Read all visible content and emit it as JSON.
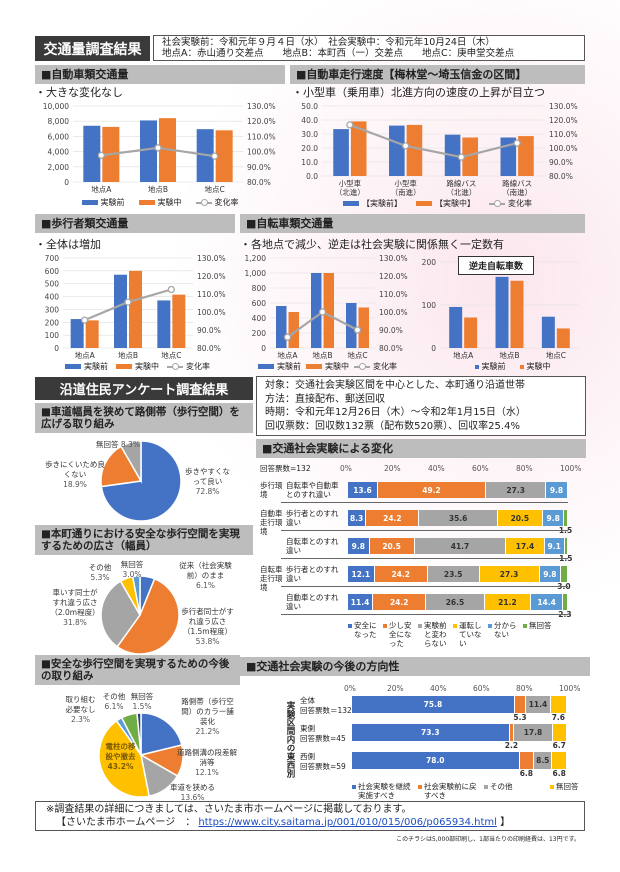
{
  "colors": {
    "before": "#4472c4",
    "during": "#ed7d31",
    "rate": "#a6a6a6",
    "gray": "#a5a5a5",
    "yellow": "#ffc000",
    "lightblue": "#5b9bd5",
    "green": "#70ad47"
  },
  "traffic": {
    "title": "交通量調査結果",
    "info_line1": "社会実験前：令和元年９月４日（水）　社会実験中：令和元年10月24日（木）",
    "info_line2": "地点A：赤山通り交差点　　地点B：本町西（一）交差点　　地点C：庚申堂交差点",
    "legend": {
      "before": "実験前",
      "during": "実験中",
      "rate": "変化率",
      "before_b": "【実験前】",
      "during_b": "【実験中】"
    }
  },
  "sections": {
    "car_volume": {
      "header": "■自動車類交通量",
      "note": "・大きな変化なし"
    },
    "car_speed": {
      "header": "■自動車走行速度【梅林堂～埼玉信金の区間】",
      "note": "・小型車（乗用車）北進方向の速度の上昇が目立つ"
    },
    "ped_volume": {
      "header": "■歩行者類交通量",
      "note": "・全体は増加"
    },
    "bike_volume": {
      "header": "■自転車類交通量",
      "note": "・各地点で減少、逆走は社会実験に関係無く一定数有",
      "inset_title": "逆走自転車数"
    }
  },
  "chart_data": [
    {
      "type": "bar",
      "id": "car",
      "categories": [
        "地点A",
        "地点B",
        "地点C"
      ],
      "series": [
        {
          "name": "実験前",
          "values": [
            7400,
            8100,
            6950
          ]
        },
        {
          "name": "実験中",
          "values": [
            7250,
            8400,
            6800
          ]
        },
        {
          "name": "変化率",
          "type": "line",
          "axis": "right",
          "values": [
            97.5,
            102.5,
            97.0
          ]
        }
      ],
      "ylim": [
        0,
        10000
      ],
      "yticks": [
        "0",
        "2,000",
        "4,000",
        "6,000",
        "8,000",
        "10,000"
      ],
      "y2lim": [
        80,
        130
      ],
      "y2ticks": [
        "80.0%",
        "90.0%",
        "100.0%",
        "110.0%",
        "120.0%",
        "130.0%"
      ]
    },
    {
      "type": "bar",
      "id": "speed",
      "categories": [
        "小型車\n（北進）",
        "小型車\n（南進）",
        "路線バス\n（北進）",
        "路線バス\n（南進）"
      ],
      "series": [
        {
          "name": "【実験前】",
          "values": [
            33.5,
            36,
            29.5,
            27.5
          ]
        },
        {
          "name": "【実験中】",
          "values": [
            39,
            36.5,
            27.5,
            28.5
          ]
        },
        {
          "name": "変化率",
          "type": "line",
          "axis": "right",
          "values": [
            116.5,
            101.5,
            93.5,
            103.5
          ]
        }
      ],
      "ylim": [
        0,
        50
      ],
      "yticks": [
        "0.0",
        "10.0",
        "20.0",
        "30.0",
        "40.0",
        "50.0"
      ],
      "y2lim": [
        80,
        130
      ],
      "y2ticks": [
        "80.0%",
        "90.0%",
        "100.0%",
        "110.0%",
        "120.0%",
        "130.0%"
      ]
    },
    {
      "type": "bar",
      "id": "ped",
      "categories": [
        "地点A",
        "地点B",
        "地点C"
      ],
      "series": [
        {
          "name": "実験前",
          "values": [
            225,
            570,
            370
          ]
        },
        {
          "name": "実験中",
          "values": [
            215,
            600,
            415
          ]
        },
        {
          "name": "変化率",
          "type": "line",
          "axis": "right",
          "values": [
            95.5,
            105.5,
            112.5
          ]
        }
      ],
      "ylim": [
        0,
        700
      ],
      "yticks": [
        "0",
        "100",
        "200",
        "300",
        "400",
        "500",
        "600",
        "700"
      ],
      "y2lim": [
        80,
        130
      ],
      "y2ticks": [
        "80.0%",
        "90.0%",
        "100.0%",
        "110.0%",
        "120.0%",
        "130.0%"
      ]
    },
    {
      "type": "bar",
      "id": "bike",
      "categories": [
        "地点A",
        "地点B",
        "地点C"
      ],
      "series": [
        {
          "name": "実験前",
          "values": [
            560,
            1000,
            600
          ]
        },
        {
          "name": "実験中",
          "values": [
            480,
            1000,
            540
          ]
        },
        {
          "name": "変化率",
          "type": "line",
          "axis": "right",
          "values": [
            86,
            100,
            90
          ]
        }
      ],
      "ylim": [
        0,
        1200
      ],
      "yticks": [
        "0",
        "200",
        "400",
        "600",
        "800",
        "1,000",
        "1,200"
      ],
      "y2lim": [
        80,
        130
      ],
      "y2ticks": [
        "80.0%",
        "90.0%",
        "100.0%",
        "110.0%",
        "120.0%",
        "130.0%"
      ]
    },
    {
      "type": "bar",
      "id": "reverse",
      "title": "逆走自転車数",
      "categories": [
        "地点A",
        "地点B",
        "地点C"
      ],
      "series": [
        {
          "name": "実験前",
          "values": [
            105,
            182,
            80
          ]
        },
        {
          "name": "実験中",
          "values": [
            78,
            172,
            50
          ]
        }
      ],
      "ylim": [
        0,
        220
      ],
      "yticks": [
        "0",
        "100",
        "200"
      ]
    },
    {
      "type": "pie",
      "id": "pie1",
      "values": [
        72.8,
        18.9,
        8.3
      ],
      "labels": [
        "歩きやすくなって良い",
        "歩きにくいため良くない",
        "無回答"
      ],
      "colors": [
        "#4472c4",
        "#ed7d31",
        "#a5a5a5"
      ]
    },
    {
      "type": "pie",
      "id": "pie2",
      "values": [
        6.1,
        53.8,
        31.8,
        5.3,
        3.0
      ],
      "labels": [
        "従来（社会実験前）のまま",
        "歩行者同士がすれ違う広さ（1.5m程度）",
        "車いす同士がすれ違う広さ（2.0m程度）",
        "その他",
        "無回答"
      ],
      "colors": [
        "#4472c4",
        "#ed7d31",
        "#a5a5a5",
        "#ffc000",
        "#5b9bd5"
      ]
    },
    {
      "type": "pie",
      "id": "pie3",
      "values": [
        21.2,
        12.1,
        13.6,
        43.2,
        2.3,
        6.1,
        1.5
      ],
      "labels": [
        "路側帯（歩行空間）のカラー舗装化",
        "道路側溝の段差解消等",
        "車道を狭める",
        "電柱の移設や撤去",
        "取り組む必要なし",
        "その他",
        "無回答"
      ],
      "colors": [
        "#4472c4",
        "#ed7d31",
        "#a5a5a5",
        "#ffc000",
        "#5b9bd5",
        "#70ad47",
        "#264478"
      ]
    },
    {
      "type": "bar",
      "id": "change",
      "stacked": true,
      "horizontal": true,
      "note": "回答票数=132",
      "xticks": [
        "0%",
        "20%",
        "40%",
        "60%",
        "80%",
        "100%"
      ],
      "legend": [
        "安全になった",
        "少し安全になった",
        "実験前と変わらない",
        "運転していない",
        "分からない",
        "無回答"
      ],
      "colors": [
        "#4472c4",
        "#ed7d31",
        "#a5a5a5",
        "#ffc000",
        "#5b9bd5",
        "#70ad47"
      ],
      "rows": [
        {
          "group": "歩行環境",
          "label": "自転車や自動車とのすれ違い",
          "values": [
            13.6,
            49.2,
            27.3,
            0,
            9.8,
            0
          ]
        },
        {
          "group": "自動車走行環境",
          "label": "歩行者とのすれ違い",
          "values": [
            8.3,
            24.2,
            35.6,
            20.5,
            9.8,
            1.5
          ]
        },
        {
          "group": "",
          "label": "自転車とのすれ違い",
          "values": [
            9.8,
            20.5,
            41.7,
            17.4,
            9.1,
            1.5
          ]
        },
        {
          "group": "自転車走行環境",
          "label": "歩行者とのすれ違い",
          "values": [
            12.1,
            24.2,
            23.5,
            27.3,
            9.8,
            3.0
          ]
        },
        {
          "group": "",
          "label": "自動車とのすれ違い",
          "values": [
            11.4,
            24.2,
            26.5,
            21.2,
            14.4,
            2.3
          ]
        }
      ]
    },
    {
      "type": "bar",
      "id": "future",
      "stacked": true,
      "horizontal": true,
      "xticks": [
        "0%",
        "20%",
        "40%",
        "60%",
        "80%",
        "100%"
      ],
      "legend": [
        "社会実験を継続実施すべき",
        "社会実験前に戻すべき",
        "その他",
        "無回答"
      ],
      "colors": [
        "#4472c4",
        "#ed7d31",
        "#a5a5a5",
        "#ffc000"
      ],
      "group": "実験区間内の東西別",
      "rows": [
        {
          "label": "全体",
          "sub": "回答票数＝132",
          "values": [
            75.8,
            5.3,
            11.4,
            7.6
          ]
        },
        {
          "label": "東側",
          "sub": "回答票数=45",
          "values": [
            73.3,
            2.2,
            17.8,
            6.7
          ]
        },
        {
          "label": "西側",
          "sub": "回答票数=59",
          "values": [
            78.0,
            6.8,
            8.5,
            6.8
          ]
        }
      ]
    }
  ],
  "survey": {
    "title": "沿道住民アンケート調査結果",
    "info": [
      "対象：交通社会実験区間を中心とした、本町通り沿道世帯",
      "方法：直接配布、郵送回収",
      "時期：令和元年12月26日（木）～令和2年1月15日（水）",
      "回収票数：回収数132票（配布数520票）、回収率25.4%"
    ],
    "pie1_header": "■車道幅員を狭めて路側帯（歩行空間）を広げる取り組み",
    "pie2_header": "■本町通りにおける安全な歩行空間を実現するための広さ（幅員）",
    "pie3_header": "■安全な歩行空間を実現するための今後の取り組み",
    "change_header": "■交通社会実験による変化",
    "future_header": "■交通社会実験の今後の方向性",
    "pie1_labels": [
      "歩きやすくなって良い",
      "72.8%",
      "歩きにくいため良くない",
      "18.9%",
      "無回答",
      "8.3%"
    ],
    "pie2_labels": [
      "従来（社会実験前）のまま",
      "6.1%",
      "歩行者同士がすれ違う広さ（1.5m程度）",
      "53.8%",
      "車いす同士がすれ違う広さ（2.0m程度）",
      "31.8%",
      "その他",
      "5.3%",
      "無回答",
      "3.0%"
    ],
    "pie3_labels": [
      "路側帯（歩行空間）のカラー舗装化",
      "21.2%",
      "道路側溝の段差解消等",
      "12.1%",
      "車道を狭める",
      "13.6%",
      "電柱の移設や撤去",
      "43.2%",
      "取り組む必要なし",
      "2.3%",
      "その他",
      "6.1%",
      "無回答",
      "1.5%"
    ]
  },
  "footer": {
    "line1": "※調査結果の詳細につきましては、さいたま市ホームページに掲載しております。",
    "prefix": "【さいたま市ホームページ　：",
    "url": "https://www.city.saitama.jp/001/010/015/006/p065934.html",
    "suffix": "】",
    "print_note": "このチラシは5,000部印刷し、1部当たりの印刷経費は、13円です。"
  }
}
